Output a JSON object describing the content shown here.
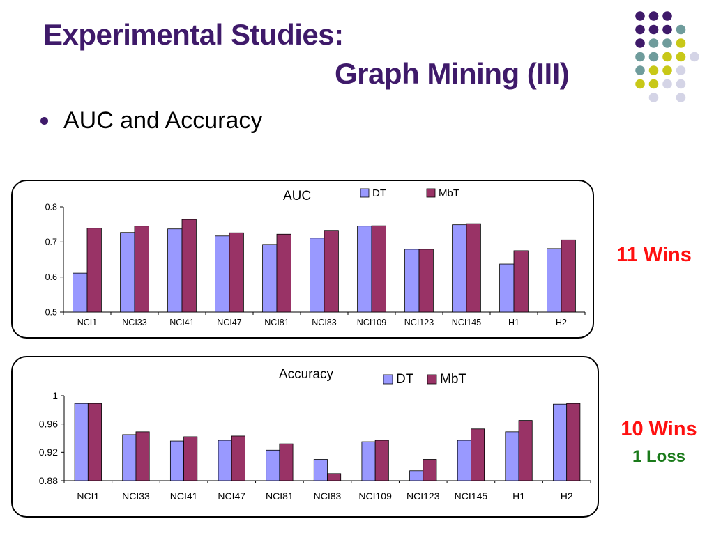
{
  "slide": {
    "title_line1": "Experimental Studies:",
    "title_line2": "Graph Mining (III)",
    "bullet": "AUC and Accuracy",
    "auc_result": "11 Wins",
    "acc_result_wins": "10 Wins",
    "acc_result_loss": "1 Loss"
  },
  "colors": {
    "title": "#3f1a6a",
    "dt": "#9999ff",
    "mbt": "#993366",
    "wins": "#ff1010",
    "loss": "#1a7a1a",
    "dot_purple": "#3f1a6a",
    "dot_teal": "#6f9c9c",
    "dot_yellow": "#c8c818",
    "dot_lilac": "#d4d4e6"
  },
  "decor_dots": [
    [
      "purple",
      "purple",
      "purple",
      null
    ],
    [
      "purple",
      "purple",
      "purple",
      "teal"
    ],
    [
      "purple",
      "teal",
      "teal",
      "yellow"
    ],
    [
      "teal",
      "teal",
      "yellow",
      "yellow",
      "lilac"
    ],
    [
      "teal",
      "yellow",
      "yellow",
      "lilac"
    ],
    [
      "yellow",
      "yellow",
      "lilac",
      "lilac"
    ],
    [
      null,
      "lilac",
      null,
      "lilac"
    ]
  ],
  "chart_data": [
    {
      "type": "bar",
      "title": "AUC",
      "categories": [
        "NCI1",
        "NCI33",
        "NCI41",
        "NCI47",
        "NCI81",
        "NCI83",
        "NCI109",
        "NCI123",
        "NCI145",
        "H1",
        "H2"
      ],
      "series": [
        {
          "name": "DT",
          "values": [
            0.611,
            0.727,
            0.737,
            0.717,
            0.693,
            0.711,
            0.745,
            0.679,
            0.749,
            0.637,
            0.681
          ]
        },
        {
          "name": "MbT",
          "values": [
            0.739,
            0.745,
            0.764,
            0.726,
            0.722,
            0.733,
            0.746,
            0.679,
            0.752,
            0.675,
            0.706
          ]
        }
      ],
      "ylim": [
        0.5,
        0.8
      ],
      "yticks": [
        "0.5",
        "0.6",
        "0.7",
        "0.8"
      ],
      "grid": false,
      "legend": "top-right"
    },
    {
      "type": "bar",
      "title": "Accuracy",
      "categories": [
        "NCI1",
        "NCI33",
        "NCI41",
        "NCI47",
        "NCI81",
        "NCI83",
        "NCI109",
        "NCI123",
        "NCI145",
        "H1",
        "H2"
      ],
      "series": [
        {
          "name": "DT",
          "values": [
            0.989,
            0.945,
            0.936,
            0.937,
            0.923,
            0.91,
            0.935,
            0.894,
            0.937,
            0.949,
            0.988
          ]
        },
        {
          "name": "MbT",
          "values": [
            0.989,
            0.949,
            0.942,
            0.943,
            0.932,
            0.89,
            0.937,
            0.91,
            0.953,
            0.965,
            0.989
          ]
        }
      ],
      "ylim": [
        0.88,
        1.0
      ],
      "yticks": [
        "0.88",
        "0.92",
        "0.96",
        "1"
      ],
      "grid": false,
      "legend": "top-right"
    }
  ]
}
